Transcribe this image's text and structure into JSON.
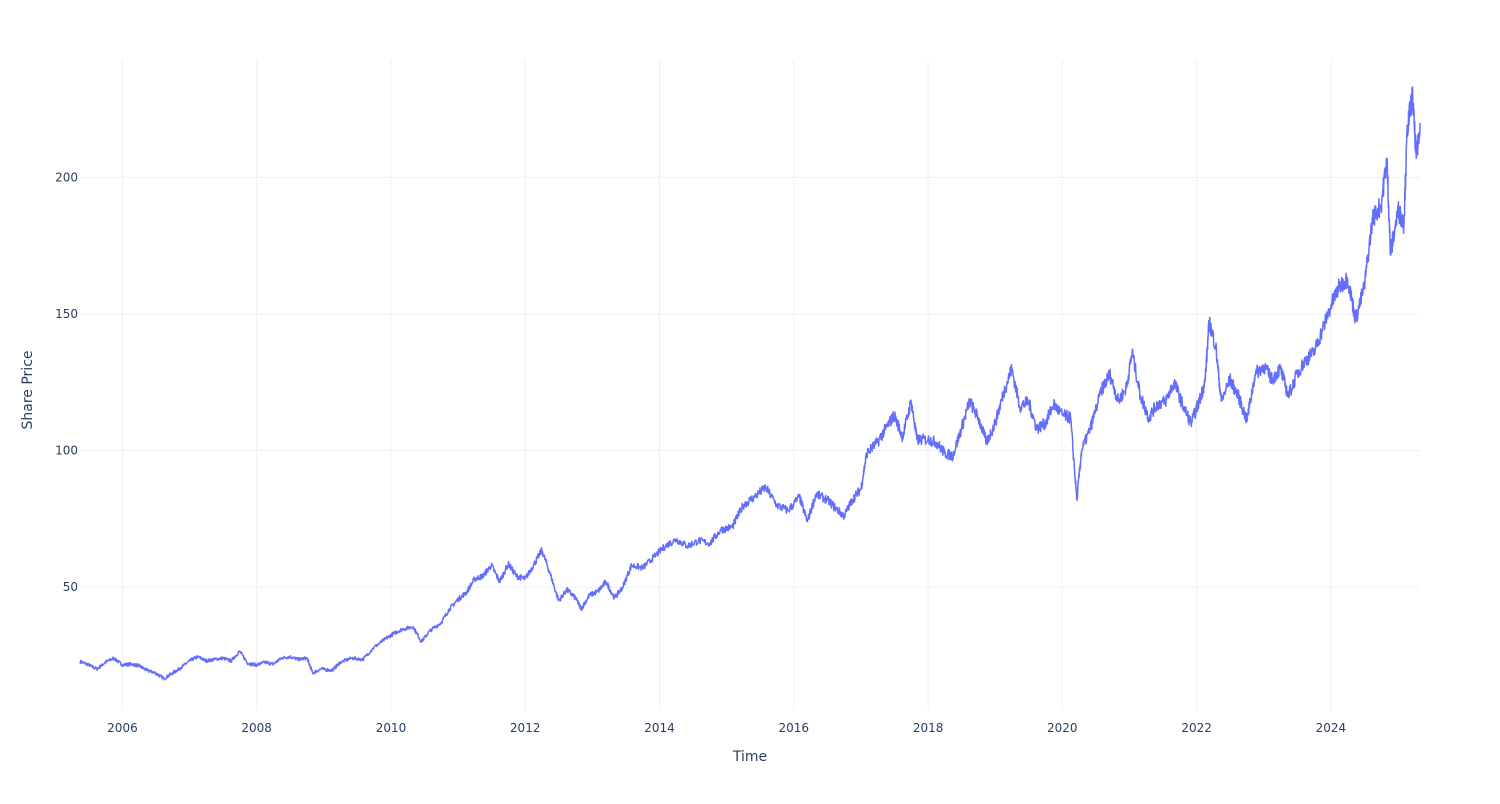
{
  "chart_data": {
    "type": "line",
    "xlabel": "Time",
    "ylabel": "Share Price",
    "xlim": [
      "2005-05-15",
      "2025-04-30"
    ],
    "ylim": [
      5,
      243
    ],
    "x_ticks": [
      "2006",
      "2008",
      "2010",
      "2012",
      "2014",
      "2016",
      "2018",
      "2020",
      "2022",
      "2024"
    ],
    "y_ticks": [
      "50",
      "100",
      "150",
      "200"
    ],
    "grid": true,
    "legend": "none",
    "colors": {
      "line": "#636efa",
      "grid": "#ebf0f8",
      "text": "#2a3f5f",
      "background": "#ffffff"
    },
    "series": [
      {
        "points": [
          [
            "2005-05-15",
            22.8
          ],
          [
            "2005-07-01",
            21.5
          ],
          [
            "2005-08-15",
            20.0
          ],
          [
            "2005-10-01",
            22.5
          ],
          [
            "2005-11-15",
            24.0
          ],
          [
            "2006-01-01",
            21.5
          ],
          [
            "2006-02-15",
            21.8
          ],
          [
            "2006-04-01",
            21.2
          ],
          [
            "2006-05-15",
            19.5
          ],
          [
            "2006-07-01",
            18.5
          ],
          [
            "2006-08-15",
            16.5
          ],
          [
            "2006-10-01",
            18.5
          ],
          [
            "2006-11-15",
            20.5
          ],
          [
            "2007-01-01",
            23.0
          ],
          [
            "2007-02-15",
            24.5
          ],
          [
            "2007-04-01",
            23.0
          ],
          [
            "2007-05-15",
            23.5
          ],
          [
            "2007-07-01",
            24.0
          ],
          [
            "2007-08-15",
            23.0
          ],
          [
            "2007-10-01",
            26.5
          ],
          [
            "2007-11-15",
            22.0
          ],
          [
            "2008-01-01",
            21.5
          ],
          [
            "2008-02-15",
            22.5
          ],
          [
            "2008-04-01",
            21.8
          ],
          [
            "2008-05-15",
            24.0
          ],
          [
            "2008-07-01",
            24.5
          ],
          [
            "2008-08-15",
            23.5
          ],
          [
            "2008-10-01",
            24.0
          ],
          [
            "2008-11-01",
            18.5
          ],
          [
            "2008-12-15",
            20.0
          ],
          [
            "2009-02-15",
            19.5
          ],
          [
            "2009-04-01",
            22.5
          ],
          [
            "2009-06-01",
            24.0
          ],
          [
            "2009-08-01",
            23.5
          ],
          [
            "2009-10-01",
            28.0
          ],
          [
            "2009-12-01",
            31.0
          ],
          [
            "2010-01-15",
            33.0
          ],
          [
            "2010-03-01",
            34.5
          ],
          [
            "2010-05-01",
            35.5
          ],
          [
            "2010-06-15",
            30.0
          ],
          [
            "2010-08-01",
            34.0
          ],
          [
            "2010-10-01",
            37.0
          ],
          [
            "2010-11-15",
            42.0
          ],
          [
            "2011-01-01",
            45.5
          ],
          [
            "2011-02-15",
            48.0
          ],
          [
            "2011-04-01",
            53.0
          ],
          [
            "2011-05-15",
            54.0
          ],
          [
            "2011-07-01",
            58.0
          ],
          [
            "2011-08-15",
            52.0
          ],
          [
            "2011-10-01",
            58.5
          ],
          [
            "2011-11-15",
            54.0
          ],
          [
            "2012-01-01",
            53.0
          ],
          [
            "2012-02-15",
            58.0
          ],
          [
            "2012-04-01",
            63.5
          ],
          [
            "2012-05-15",
            55.0
          ],
          [
            "2012-07-01",
            45.0
          ],
          [
            "2012-08-15",
            49.0
          ],
          [
            "2012-10-01",
            46.0
          ],
          [
            "2012-11-01",
            42.0
          ],
          [
            "2012-12-15",
            47.0
          ],
          [
            "2013-02-01",
            48.5
          ],
          [
            "2013-03-15",
            52.0
          ],
          [
            "2013-05-01",
            46.0
          ],
          [
            "2013-06-15",
            50.0
          ],
          [
            "2013-08-01",
            58.0
          ],
          [
            "2013-10-01",
            57.0
          ],
          [
            "2013-12-01",
            61.0
          ],
          [
            "2014-02-01",
            65.0
          ],
          [
            "2014-04-01",
            67.5
          ],
          [
            "2014-06-01",
            65.0
          ],
          [
            "2014-08-01",
            67.0
          ],
          [
            "2014-10-01",
            66.0
          ],
          [
            "2014-12-01",
            71.0
          ],
          [
            "2015-02-01",
            72.0
          ],
          [
            "2015-04-01",
            80.0
          ],
          [
            "2015-06-01",
            83.0
          ],
          [
            "2015-08-01",
            86.5
          ],
          [
            "2015-10-01",
            80.0
          ],
          [
            "2015-12-01",
            78.0
          ],
          [
            "2016-02-01",
            83.0
          ],
          [
            "2016-03-15",
            74.0
          ],
          [
            "2016-05-01",
            84.0
          ],
          [
            "2016-07-01",
            82.0
          ],
          [
            "2016-08-15",
            79.0
          ],
          [
            "2016-10-01",
            76.0
          ],
          [
            "2016-11-15",
            82.0
          ],
          [
            "2017-01-01",
            86.0
          ],
          [
            "2017-02-01",
            99.0
          ],
          [
            "2017-04-01",
            103.0
          ],
          [
            "2017-05-15",
            108.0
          ],
          [
            "2017-07-01",
            113.0
          ],
          [
            "2017-08-15",
            105.0
          ],
          [
            "2017-10-01",
            118.0
          ],
          [
            "2017-11-01",
            104.0
          ],
          [
            "2018-01-01",
            104.0
          ],
          [
            "2018-02-15",
            103.0
          ],
          [
            "2018-04-01",
            99.0
          ],
          [
            "2018-05-15",
            98.0
          ],
          [
            "2018-07-01",
            108.0
          ],
          [
            "2018-08-15",
            118.0
          ],
          [
            "2018-10-01",
            112.0
          ],
          [
            "2018-11-15",
            103.0
          ],
          [
            "2019-01-01",
            110.0
          ],
          [
            "2019-02-15",
            121.0
          ],
          [
            "2019-04-01",
            130.0
          ],
          [
            "2019-05-15",
            116.0
          ],
          [
            "2019-07-01",
            118.0
          ],
          [
            "2019-08-15",
            108.0
          ],
          [
            "2019-10-01",
            110.0
          ],
          [
            "2019-11-15",
            117.0
          ],
          [
            "2020-01-01",
            113.0
          ],
          [
            "2020-02-15",
            112.0
          ],
          [
            "2020-03-20",
            82.0
          ],
          [
            "2020-04-15",
            100.0
          ],
          [
            "2020-06-01",
            108.0
          ],
          [
            "2020-08-01",
            122.0
          ],
          [
            "2020-09-15",
            128.0
          ],
          [
            "2020-11-01",
            118.0
          ],
          [
            "2020-12-15",
            123.0
          ],
          [
            "2021-01-15",
            136.0
          ],
          [
            "2021-03-01",
            120.0
          ],
          [
            "2021-04-15",
            112.0
          ],
          [
            "2021-06-01",
            117.0
          ],
          [
            "2021-07-15",
            118.0
          ],
          [
            "2021-09-01",
            125.0
          ],
          [
            "2021-10-15",
            117.0
          ],
          [
            "2021-12-01",
            110.0
          ],
          [
            "2022-01-15",
            118.0
          ],
          [
            "2022-02-15",
            125.0
          ],
          [
            "2022-03-10",
            147.0
          ],
          [
            "2022-04-15",
            138.0
          ],
          [
            "2022-05-15",
            118.0
          ],
          [
            "2022-07-01",
            126.0
          ],
          [
            "2022-08-15",
            120.0
          ],
          [
            "2022-10-01",
            111.0
          ],
          [
            "2022-11-15",
            128.0
          ],
          [
            "2023-01-01",
            131.0
          ],
          [
            "2023-02-15",
            126.0
          ],
          [
            "2023-04-01",
            130.0
          ],
          [
            "2023-05-15",
            120.0
          ],
          [
            "2023-07-01",
            128.0
          ],
          [
            "2023-08-15",
            133.0
          ],
          [
            "2023-10-01",
            136.0
          ],
          [
            "2023-11-15",
            144.0
          ],
          [
            "2024-01-01",
            153.0
          ],
          [
            "2024-02-15",
            160.0
          ],
          [
            "2024-04-01",
            163.0
          ],
          [
            "2024-05-15",
            148.0
          ],
          [
            "2024-07-01",
            160.0
          ],
          [
            "2024-08-15",
            185.0
          ],
          [
            "2024-10-01",
            190.0
          ],
          [
            "2024-11-01",
            207.0
          ],
          [
            "2024-11-20",
            172.0
          ],
          [
            "2025-01-01",
            188.0
          ],
          [
            "2025-02-01",
            183.0
          ],
          [
            "2025-02-20",
            218.0
          ],
          [
            "2025-03-20",
            230.0
          ],
          [
            "2025-04-10",
            207.0
          ],
          [
            "2025-04-30",
            220.0
          ]
        ]
      }
    ]
  }
}
